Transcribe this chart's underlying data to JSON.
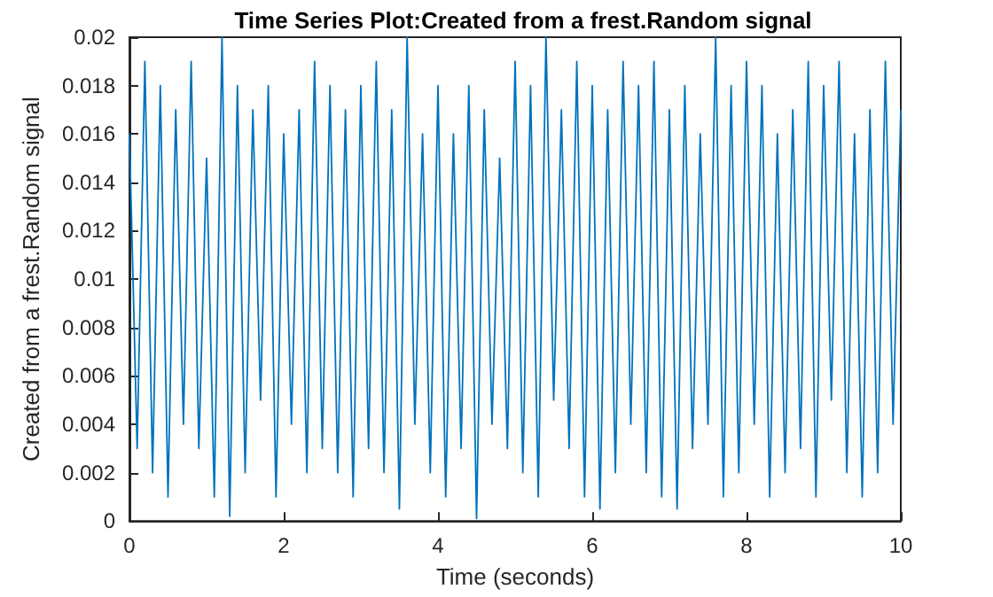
{
  "chart_data": {
    "type": "line",
    "title": "Time Series Plot:Created from a frest.Random signal",
    "xlabel": "Time (seconds)",
    "ylabel": "Created from a frest.Random signal",
    "x": [
      0,
      0.1,
      0.2,
      0.3,
      0.4,
      0.5,
      0.6,
      0.7,
      0.8,
      0.9,
      1,
      1.1,
      1.2,
      1.3,
      1.4,
      1.5,
      1.6,
      1.7,
      1.8,
      1.9,
      2,
      2.1,
      2.2,
      2.3,
      2.4,
      2.5,
      2.6,
      2.7,
      2.8,
      2.9,
      3,
      3.1,
      3.2,
      3.3,
      3.4,
      3.5,
      3.6,
      3.7,
      3.8,
      3.9,
      4,
      4.1,
      4.2,
      4.3,
      4.4,
      4.5,
      4.6,
      4.7,
      4.8,
      4.9,
      5,
      5.1,
      5.2,
      5.3,
      5.4,
      5.5,
      5.6,
      5.7,
      5.8,
      5.9,
      6,
      6.1,
      6.2,
      6.3,
      6.4,
      6.5,
      6.6,
      6.7,
      6.8,
      6.9,
      7,
      7.1,
      7.2,
      7.3,
      7.4,
      7.5,
      7.6,
      7.7,
      7.8,
      7.9,
      8,
      8.1,
      8.2,
      8.3,
      8.4,
      8.5,
      8.6,
      8.7,
      8.8,
      8.9,
      9,
      9.1,
      9.2,
      9.3,
      9.4,
      9.5,
      9.6,
      9.7,
      9.8,
      9.9,
      10
    ],
    "series": [
      {
        "color": "#0072bd",
        "values": [
          0.016,
          0.003,
          0.019,
          0.002,
          0.018,
          0.001,
          0.017,
          0.004,
          0.019,
          0.003,
          0.015,
          0.001,
          0.02,
          0.0002,
          0.018,
          0.002,
          0.017,
          0.005,
          0.018,
          0.001,
          0.016,
          0.004,
          0.017,
          0.002,
          0.019,
          0.003,
          0.018,
          0.002,
          0.017,
          0.001,
          0.018,
          0.003,
          0.019,
          0.002,
          0.017,
          0.0005,
          0.02,
          0.004,
          0.016,
          0.002,
          0.018,
          0.001,
          0.016,
          0.003,
          0.018,
          0.0001,
          0.017,
          0.004,
          0.015,
          0.003,
          0.019,
          0.002,
          0.018,
          0.001,
          0.02,
          0.005,
          0.017,
          0.003,
          0.019,
          0.001,
          0.018,
          0.0005,
          0.017,
          0.002,
          0.019,
          0.004,
          0.018,
          0.002,
          0.019,
          0.001,
          0.017,
          0.0005,
          0.018,
          0.003,
          0.016,
          0.004,
          0.02,
          0.001,
          0.018,
          0.002,
          0.019,
          0.004,
          0.018,
          0.001,
          0.016,
          0.002,
          0.017,
          0.003,
          0.019,
          0.001,
          0.018,
          0.005,
          0.019,
          0.002,
          0.016,
          0.001,
          0.017,
          0.002,
          0.019,
          0.004,
          0.017
        ]
      }
    ],
    "xlim": [
      0,
      10
    ],
    "xticks": [
      0,
      2,
      4,
      6,
      8,
      10
    ],
    "ylim": [
      0,
      0.02
    ],
    "yticks": [
      0,
      0.002,
      0.004,
      0.006,
      0.008,
      0.01,
      0.012,
      0.014,
      0.016,
      0.018,
      0.02
    ],
    "grid": false,
    "marker": "none",
    "line_style": "solid"
  }
}
